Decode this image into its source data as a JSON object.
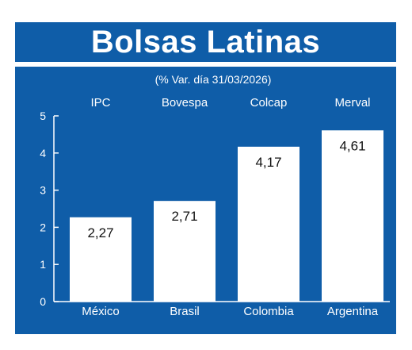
{
  "chart_data": {
    "type": "bar",
    "title": "Bolsas Latinas",
    "subtitle": "(% Var. día 31/03/2026)",
    "index_labels": [
      "IPC",
      "Bovespa",
      "Colcap",
      "Merval"
    ],
    "categories": [
      "México",
      "Brasil",
      "Colombia",
      "Argentina"
    ],
    "values": [
      2.27,
      2.71,
      4.17,
      4.61
    ],
    "value_labels": [
      "2,27",
      "2,71",
      "4,17",
      "4,61"
    ],
    "yticks": [
      "0",
      "1",
      "2",
      "3",
      "4",
      "5"
    ],
    "ylim": [
      0,
      5
    ],
    "xlabel": "",
    "ylabel": "",
    "grid": false,
    "colors": {
      "background": "#0f5da8",
      "bar": "#ffffff",
      "text": "#ffffff",
      "value_text": "#111111"
    }
  }
}
